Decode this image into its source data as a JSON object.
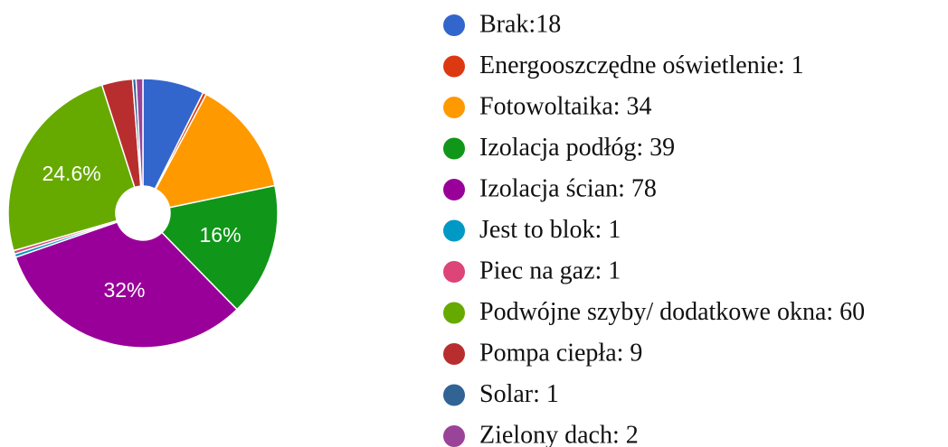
{
  "chart_data": {
    "type": "pie",
    "categories": [
      "Brak:18",
      "Energooszczędne oświetlenie: 1",
      "Fotowoltaika: 34",
      "Izolacja podłóg: 39",
      "Izolacja ścian: 78",
      "Jest to blok: 1",
      "Piec na gaz: 1",
      "Podwójne szyby/ dodatkowe okna: 60",
      "Pompa ciepła: 9",
      "Solar: 1",
      "Zielony dach: 2"
    ],
    "values": [
      18,
      1,
      34,
      39,
      78,
      1,
      1,
      60,
      9,
      1,
      2
    ],
    "value_labels": [
      null,
      null,
      null,
      "16%",
      "32%",
      null,
      null,
      "24.6%",
      null,
      null,
      null
    ],
    "colors": [
      "#3366cc",
      "#dc3912",
      "#ff9900",
      "#109618",
      "#990099",
      "#0099c6",
      "#dd4477",
      "#66aa00",
      "#b82e2e",
      "#316395",
      "#994499"
    ],
    "legend": "right"
  }
}
